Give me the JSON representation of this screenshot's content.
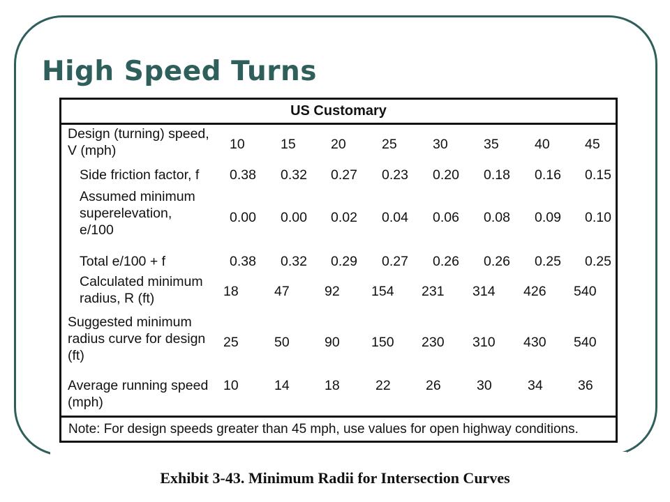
{
  "slide": {
    "title": "High Speed Turns",
    "caption": "Exhibit 3-43.  Minimum Radii for Intersection Curves"
  },
  "table": {
    "header": "US Customary",
    "note": "Note:  For design speeds greater than 45 mph, use values for open highway conditions.",
    "rows": [
      {
        "label_lines": [
          "Design (turning) speed,",
          "V (mph)"
        ],
        "values": [
          "10",
          "15",
          "20",
          "25",
          "30",
          "35",
          "40",
          "45"
        ]
      },
      {
        "label_lines": [
          "Side friction factor, f"
        ],
        "values": [
          "0.38",
          "0.32",
          "0.27",
          "0.23",
          "0.20",
          "0.18",
          "0.16",
          "0.15"
        ]
      },
      {
        "label_lines": [
          "Assumed minimum",
          "superelevation,",
          "e/100"
        ],
        "values": [
          "0.00",
          "0.00",
          "0.02",
          "0.04",
          "0.06",
          "0.08",
          "0.09",
          "0.10"
        ]
      },
      {
        "label_lines": [
          "Total e/100 + f"
        ],
        "values": [
          "0.38",
          "0.32",
          "0.29",
          "0.27",
          "0.26",
          "0.26",
          "0.25",
          "0.25"
        ]
      },
      {
        "label_lines": [
          "Calculated minimum",
          "radius, R (ft)"
        ],
        "values": [
          "18",
          "47",
          "92",
          "154",
          "231",
          "314",
          "426",
          "540"
        ]
      },
      {
        "label_lines": [
          "Suggested minimum",
          "radius curve for design",
          "(ft)"
        ],
        "values": [
          "25",
          "50",
          "90",
          "150",
          "230",
          "310",
          "430",
          "540"
        ]
      },
      {
        "label_lines": [
          "Average running speed",
          "(mph)"
        ],
        "values": [
          "10",
          "14",
          "18",
          "22",
          "26",
          "30",
          "34",
          "36"
        ]
      }
    ]
  }
}
